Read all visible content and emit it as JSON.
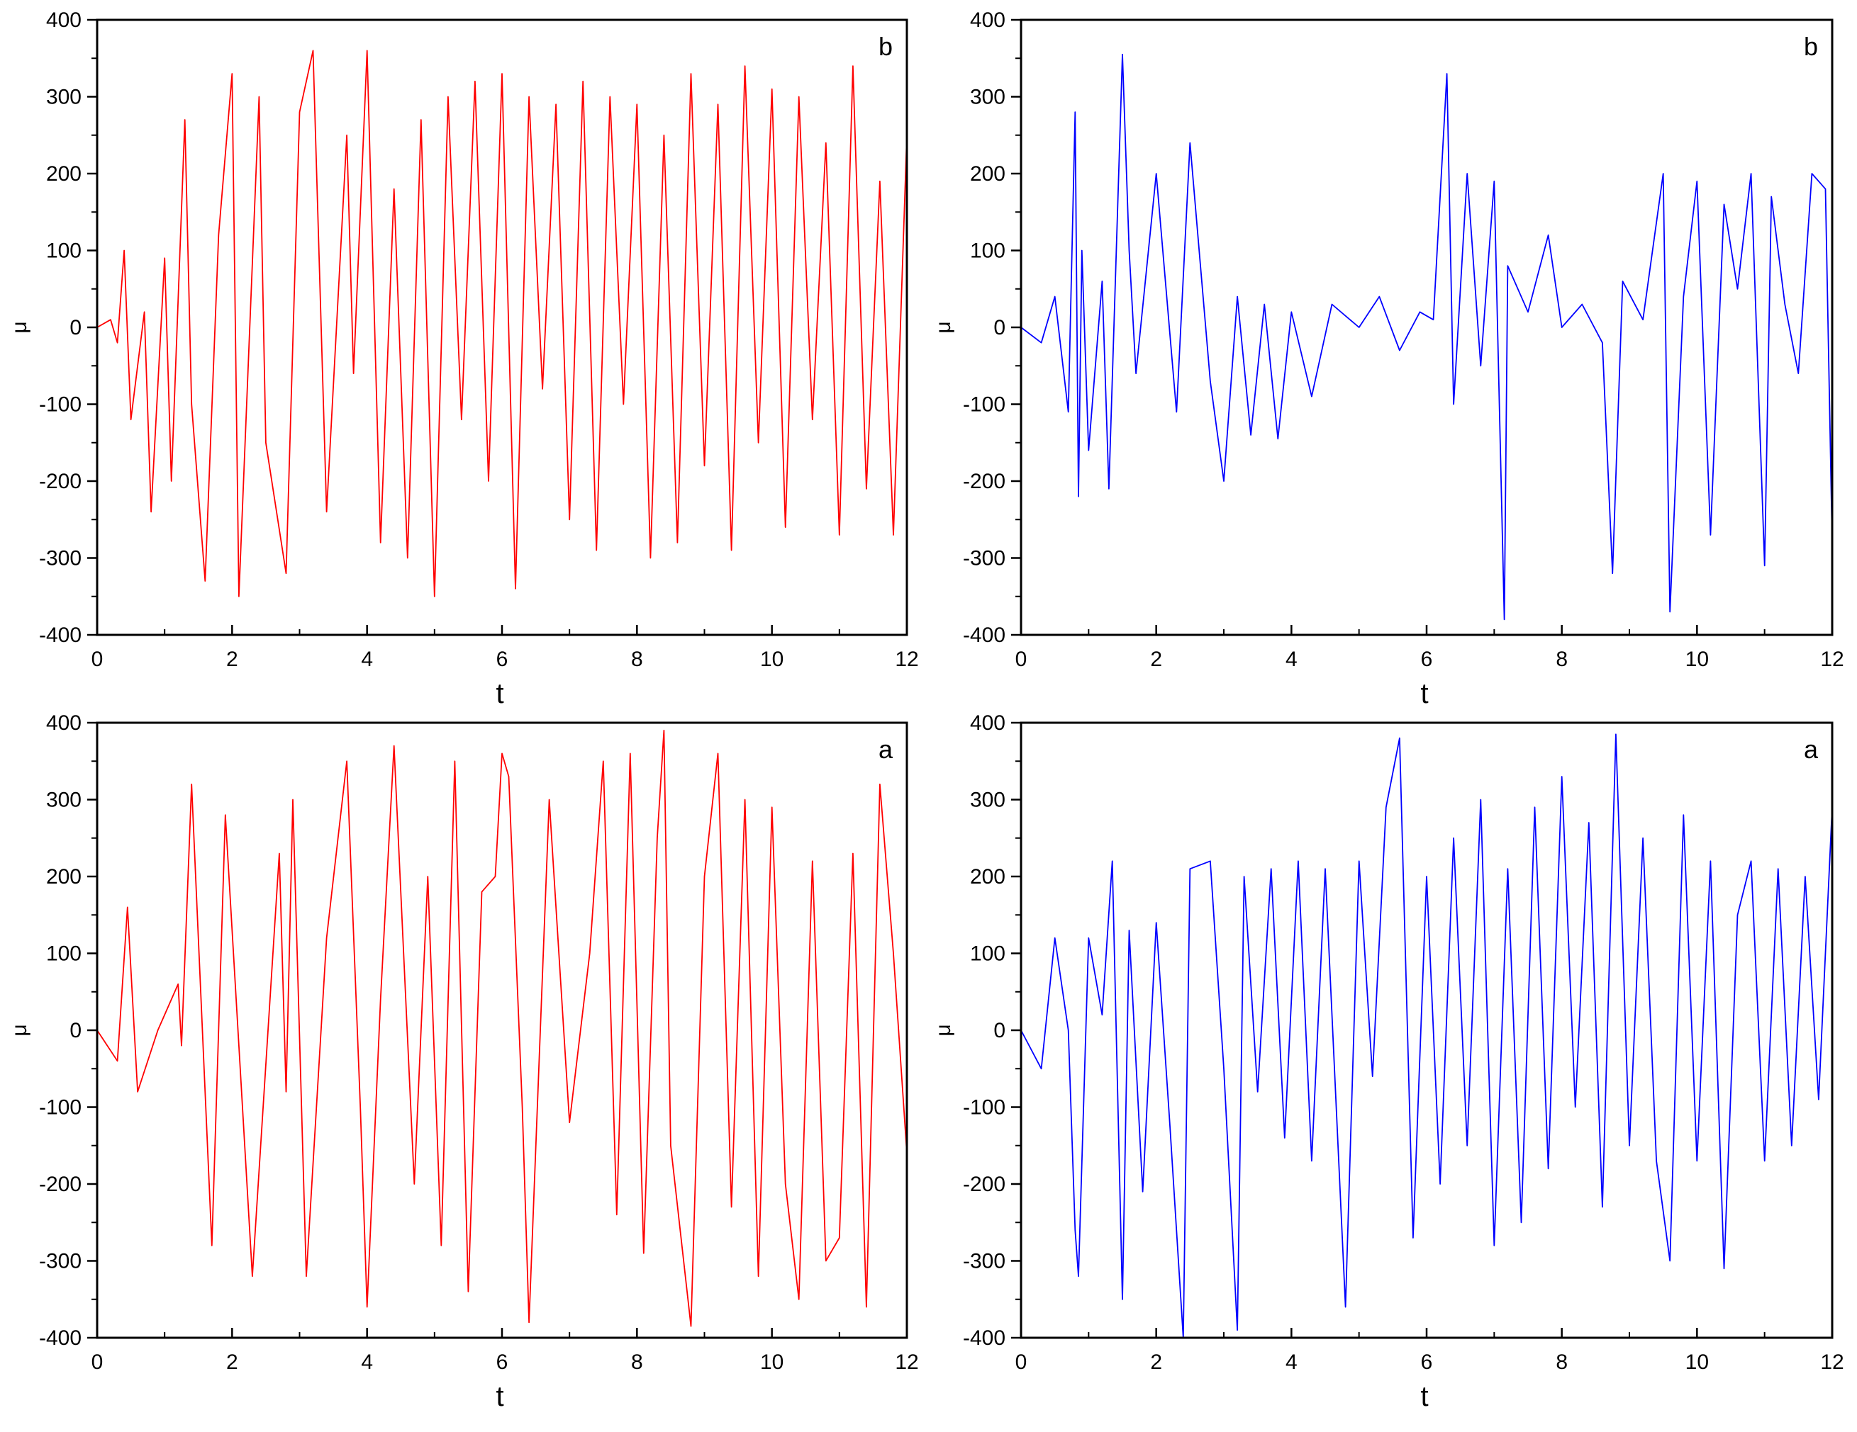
{
  "chart_data": [
    {
      "type": "line",
      "label": "b",
      "color": "#ff0000",
      "xlabel": "t",
      "ylabel": "μ",
      "xlim": [
        0,
        12
      ],
      "ylim": [
        -400,
        400
      ],
      "xticks": [
        "0",
        "2",
        "4",
        "6",
        "8",
        "10",
        "12"
      ],
      "yticks": [
        "400",
        "300",
        "200",
        "100",
        "0",
        "-100",
        "-200",
        "-300",
        "-400"
      ],
      "grid": false,
      "x": [
        0,
        0.2,
        0.3,
        0.4,
        0.5,
        0.7,
        0.8,
        1.0,
        1.1,
        1.3,
        1.4,
        1.6,
        1.8,
        2.0,
        2.1,
        2.4,
        2.5,
        2.8,
        3.0,
        3.2,
        3.4,
        3.7,
        3.8,
        4.0,
        4.2,
        4.4,
        4.6,
        4.8,
        5.0,
        5.2,
        5.4,
        5.6,
        5.8,
        6.0,
        6.2,
        6.4,
        6.6,
        6.8,
        7.0,
        7.2,
        7.4,
        7.6,
        7.8,
        8.0,
        8.2,
        8.4,
        8.6,
        8.8,
        9.0,
        9.2,
        9.4,
        9.6,
        9.8,
        10.0,
        10.2,
        10.4,
        10.6,
        10.8,
        11.0,
        11.2,
        11.4,
        11.6,
        11.8,
        12.0
      ],
      "y": [
        0,
        10,
        -20,
        100,
        -120,
        20,
        -240,
        90,
        -200,
        270,
        -100,
        -330,
        120,
        330,
        -350,
        300,
        -150,
        -320,
        280,
        360,
        -240,
        250,
        -60,
        360,
        -280,
        180,
        -300,
        270,
        -350,
        300,
        -120,
        320,
        -200,
        330,
        -340,
        300,
        -80,
        290,
        -250,
        320,
        -290,
        300,
        -100,
        290,
        -300,
        250,
        -280,
        330,
        -180,
        290,
        -290,
        340,
        -150,
        310,
        -260,
        300,
        -120,
        240,
        -270,
        340,
        -210,
        190,
        -270,
        250
      ]
    },
    {
      "type": "line",
      "label": "b",
      "color": "#0000ff",
      "xlabel": "t",
      "ylabel": "μ",
      "xlim": [
        0,
        12
      ],
      "ylim": [
        -400,
        400
      ],
      "xticks": [
        "0",
        "2",
        "4",
        "6",
        "8",
        "10",
        "12"
      ],
      "yticks": [
        "400",
        "300",
        "200",
        "100",
        "0",
        "-100",
        "-200",
        "-300",
        "-400"
      ],
      "grid": false,
      "x": [
        0,
        0.3,
        0.5,
        0.7,
        0.8,
        0.85,
        0.9,
        1.0,
        1.2,
        1.3,
        1.5,
        1.6,
        1.7,
        2.0,
        2.3,
        2.5,
        2.8,
        3.0,
        3.2,
        3.4,
        3.6,
        3.8,
        4.0,
        4.3,
        4.6,
        5.0,
        5.3,
        5.6,
        5.9,
        6.1,
        6.3,
        6.4,
        6.6,
        6.8,
        7.0,
        7.15,
        7.2,
        7.5,
        7.8,
        8.0,
        8.3,
        8.6,
        8.75,
        8.9,
        9.2,
        9.5,
        9.6,
        9.8,
        10.0,
        10.2,
        10.4,
        10.6,
        10.8,
        11.0,
        11.1,
        11.3,
        11.5,
        11.7,
        11.9,
        12.0
      ],
      "y": [
        0,
        -20,
        40,
        -110,
        280,
        -220,
        100,
        -160,
        60,
        -210,
        355,
        100,
        -60,
        200,
        -110,
        240,
        -70,
        -200,
        40,
        -140,
        30,
        -145,
        20,
        -90,
        30,
        0,
        40,
        -30,
        20,
        10,
        330,
        -100,
        200,
        -50,
        190,
        -380,
        80,
        20,
        120,
        0,
        30,
        -20,
        -320,
        60,
        10,
        200,
        -370,
        40,
        190,
        -270,
        160,
        50,
        200,
        -310,
        170,
        30,
        -60,
        200,
        180,
        -280
      ]
    },
    {
      "type": "line",
      "label": "a",
      "color": "#ff0000",
      "xlabel": "t",
      "ylabel": "μ",
      "xlim": [
        0,
        12
      ],
      "ylim": [
        -400,
        400
      ],
      "xticks": [
        "0",
        "2",
        "4",
        "6",
        "8",
        "10",
        "12"
      ],
      "yticks": [
        "400",
        "300",
        "200",
        "100",
        "0",
        "-100",
        "-200",
        "-300",
        "-400"
      ],
      "grid": false,
      "x": [
        0,
        0.3,
        0.45,
        0.6,
        0.9,
        1.2,
        1.25,
        1.4,
        1.7,
        1.9,
        2.1,
        2.3,
        2.7,
        2.8,
        2.9,
        3.1,
        3.4,
        3.7,
        3.9,
        4.0,
        4.2,
        4.4,
        4.7,
        4.9,
        5.1,
        5.3,
        5.5,
        5.7,
        5.9,
        6.0,
        6.1,
        6.3,
        6.4,
        6.7,
        7.0,
        7.3,
        7.5,
        7.7,
        7.9,
        8.1,
        8.3,
        8.4,
        8.5,
        8.8,
        9.0,
        9.2,
        9.4,
        9.6,
        9.8,
        10.0,
        10.2,
        10.4,
        10.6,
        10.8,
        11.0,
        11.2,
        11.4,
        11.6,
        11.8,
        12.0
      ],
      "y": [
        0,
        -40,
        160,
        -80,
        0,
        60,
        -20,
        320,
        -280,
        280,
        -20,
        -320,
        230,
        -80,
        300,
        -320,
        120,
        350,
        -100,
        -360,
        40,
        370,
        -200,
        200,
        -280,
        350,
        -340,
        180,
        200,
        360,
        330,
        -100,
        -380,
        300,
        -120,
        100,
        350,
        -240,
        360,
        -290,
        250,
        390,
        -150,
        -385,
        200,
        360,
        -230,
        300,
        -320,
        290,
        -200,
        -350,
        220,
        -300,
        -270,
        230,
        -360,
        320,
        100,
        -160
      ]
    },
    {
      "type": "line",
      "label": "a",
      "color": "#0000ff",
      "xlabel": "t",
      "ylabel": "μ",
      "xlim": [
        0,
        12
      ],
      "ylim": [
        -400,
        400
      ],
      "xticks": [
        "0",
        "2",
        "4",
        "6",
        "8",
        "10",
        "12"
      ],
      "yticks": [
        "400",
        "300",
        "200",
        "100",
        "0",
        "-100",
        "-200",
        "-300",
        "-400"
      ],
      "grid": false,
      "x": [
        0,
        0.3,
        0.5,
        0.7,
        0.8,
        0.85,
        1.0,
        1.2,
        1.35,
        1.5,
        1.6,
        1.8,
        2.0,
        2.2,
        2.4,
        2.5,
        2.8,
        3.0,
        3.2,
        3.3,
        3.5,
        3.7,
        3.9,
        4.1,
        4.3,
        4.5,
        4.8,
        5.0,
        5.2,
        5.4,
        5.6,
        5.8,
        6.0,
        6.2,
        6.4,
        6.6,
        6.8,
        7.0,
        7.2,
        7.4,
        7.6,
        7.8,
        8.0,
        8.2,
        8.4,
        8.6,
        8.8,
        9.0,
        9.2,
        9.4,
        9.6,
        9.8,
        10.0,
        10.2,
        10.4,
        10.6,
        10.8,
        11.0,
        11.2,
        11.4,
        11.6,
        11.8,
        12.0
      ],
      "y": [
        0,
        -50,
        120,
        0,
        -260,
        -320,
        120,
        20,
        220,
        -350,
        130,
        -210,
        140,
        -120,
        -400,
        210,
        220,
        -50,
        -390,
        200,
        -80,
        210,
        -140,
        220,
        -170,
        210,
        -360,
        220,
        -60,
        290,
        380,
        -270,
        200,
        -200,
        250,
        -150,
        300,
        -280,
        210,
        -250,
        290,
        -180,
        330,
        -100,
        270,
        -230,
        385,
        -150,
        250,
        -170,
        -300,
        280,
        -170,
        220,
        -310,
        150,
        220,
        -170,
        210,
        -150,
        200,
        -90,
        290
      ]
    }
  ]
}
